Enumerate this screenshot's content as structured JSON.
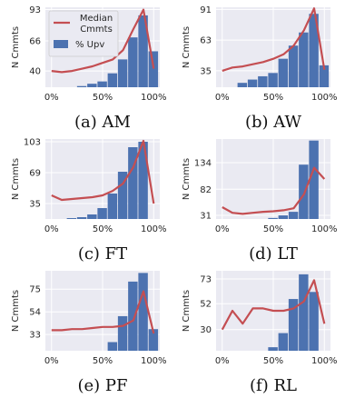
{
  "colors": {
    "panel_bg": "#eaeaf2",
    "grid": "#ffffff",
    "bar": "#4c72b0",
    "line": "#c44e52"
  },
  "legend": {
    "line_label": "Median\nCmmts",
    "bar_label": "% Upv"
  },
  "chart_data": [
    {
      "type": "bar",
      "caption": "(a) AM",
      "ylabel": "N Cmmts",
      "xticks": [
        "0%",
        "50%",
        "100%"
      ],
      "yticks": [
        40,
        66,
        93
      ],
      "ylim": [
        26,
        95
      ],
      "grid": true,
      "bar_x": [
        0.3,
        0.4,
        0.5,
        0.6,
        0.7,
        0.8,
        0.9,
        1.0
      ],
      "bar_values": [
        27,
        29,
        31,
        38,
        50,
        69,
        88,
        57
      ],
      "line_x": [
        0.0,
        0.1,
        0.2,
        0.3,
        0.4,
        0.5,
        0.6,
        0.7,
        0.8,
        0.9,
        1.0
      ],
      "line_values": [
        40,
        39,
        40,
        42,
        44,
        47,
        50,
        58,
        76,
        93,
        42
      ]
    },
    {
      "type": "bar",
      "caption": "(b) AW",
      "ylabel": "N Cmmts",
      "xticks": [
        "0%",
        "50%",
        "100%"
      ],
      "yticks": [
        35,
        63,
        91
      ],
      "ylim": [
        20,
        93
      ],
      "grid": true,
      "bar_x": [
        0.2,
        0.3,
        0.4,
        0.5,
        0.6,
        0.7,
        0.8,
        0.9,
        1.0
      ],
      "bar_values": [
        24,
        27,
        30,
        33,
        46,
        58,
        70,
        87,
        40
      ],
      "line_x": [
        0.0,
        0.1,
        0.2,
        0.3,
        0.4,
        0.5,
        0.6,
        0.7,
        0.8,
        0.9,
        1.0
      ],
      "line_values": [
        35,
        38,
        39,
        41,
        43,
        46,
        50,
        58,
        72,
        92,
        36
      ]
    },
    {
      "type": "bar",
      "caption": "(c) FT",
      "ylabel": "N Cmmts",
      "xticks": [
        "0%",
        "50%",
        "100%"
      ],
      "yticks": [
        35,
        69,
        103
      ],
      "ylim": [
        18,
        106
      ],
      "grid": true,
      "bar_x": [
        0.2,
        0.3,
        0.4,
        0.5,
        0.6,
        0.7,
        0.8,
        0.9
      ],
      "bar_values": [
        19,
        20,
        23,
        30,
        46,
        70,
        97,
        103
      ],
      "line_x": [
        0.0,
        0.1,
        0.2,
        0.3,
        0.4,
        0.5,
        0.6,
        0.7,
        0.8,
        0.9,
        1.0
      ],
      "line_values": [
        44,
        39,
        40,
        41,
        42,
        44,
        49,
        57,
        75,
        104,
        35
      ]
    },
    {
      "type": "bar",
      "caption": "(d) LT",
      "ylabel": "N Cmmts",
      "xticks": [
        "0%",
        "50%",
        "100%"
      ],
      "yticks": [
        31,
        82,
        134
      ],
      "ylim": [
        24,
        180
      ],
      "grid": true,
      "bar_x": [
        0.5,
        0.6,
        0.7,
        0.8,
        0.9
      ],
      "bar_values": [
        26,
        31,
        38,
        130,
        177
      ],
      "line_x": [
        0.0,
        0.1,
        0.2,
        0.3,
        0.4,
        0.5,
        0.6,
        0.7,
        0.8,
        0.9,
        1.0
      ],
      "line_values": [
        47,
        36,
        34,
        36,
        38,
        39,
        41,
        45,
        72,
        124,
        102
      ]
    },
    {
      "type": "bar",
      "caption": "(e) PF",
      "ylabel": "N Cmmts",
      "xticks": [
        "0%",
        "50%",
        "100%"
      ],
      "yticks": [
        33,
        54,
        75
      ],
      "ylim": [
        18,
        92
      ],
      "grid": true,
      "bar_x": [
        0.6,
        0.7,
        0.8,
        0.9,
        1.0
      ],
      "bar_values": [
        26,
        50,
        82,
        90,
        38
      ],
      "line_x": [
        0.0,
        0.1,
        0.2,
        0.3,
        0.4,
        0.5,
        0.6,
        0.7,
        0.8,
        0.9,
        1.0
      ],
      "line_values": [
        37,
        37,
        38,
        38,
        39,
        40,
        40,
        41,
        46,
        73,
        34
      ]
    },
    {
      "type": "bar",
      "caption": "(f) RL",
      "ylabel": "N Cmmts",
      "xticks": [
        "0%",
        "50%",
        "100%"
      ],
      "yticks": [
        30,
        52,
        73
      ],
      "ylim": [
        12,
        80
      ],
      "grid": true,
      "bar_x": [
        0.5,
        0.6,
        0.7,
        0.8,
        0.9
      ],
      "bar_values": [
        15,
        27,
        56,
        77,
        62
      ],
      "line_x": [
        0.0,
        0.1,
        0.2,
        0.3,
        0.4,
        0.5,
        0.6,
        0.7,
        0.8,
        0.9,
        1.0
      ],
      "line_values": [
        30,
        46,
        35,
        48,
        48,
        46,
        46,
        48,
        54,
        72,
        35
      ]
    }
  ]
}
